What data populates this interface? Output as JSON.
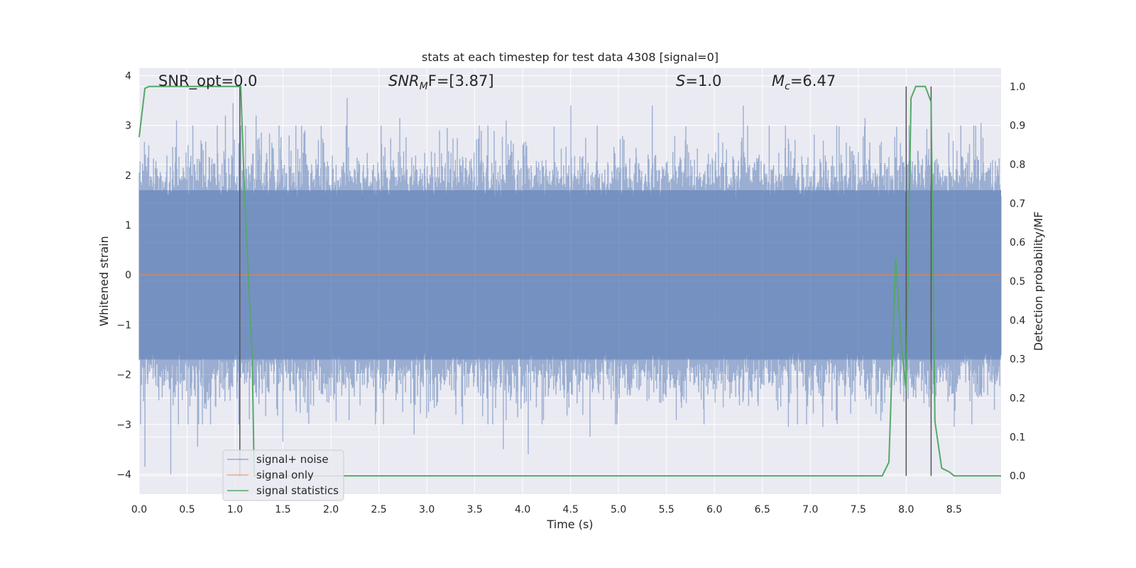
{
  "chart_data": {
    "type": "line",
    "title": "stats at each timestep for test data 4308 [signal=0]",
    "xlabel": "Time (s)",
    "ylabel": "Whitened strain",
    "y2label": "Detection probability/MF",
    "xlim": [
      0,
      8.99
    ],
    "ylim": [
      -4.4,
      4.15
    ],
    "y2lim": [
      -0.047,
      1.047
    ],
    "xticks": [
      0.0,
      0.5,
      1.0,
      1.5,
      2.0,
      2.5,
      3.0,
      3.5,
      4.0,
      4.5,
      5.0,
      5.5,
      6.0,
      6.5,
      7.0,
      7.5,
      8.0,
      8.5
    ],
    "xtick_labels": [
      "0.0",
      "0.5",
      "1.0",
      "1.5",
      "2.0",
      "2.5",
      "3.0",
      "3.5",
      "4.0",
      "4.5",
      "5.0",
      "5.5",
      "6.0",
      "6.5",
      "7.0",
      "7.5",
      "8.0",
      "8.5"
    ],
    "yticks": [
      -4,
      -3,
      -2,
      -1,
      0,
      1,
      2,
      3,
      4
    ],
    "ytick_labels": [
      "−4",
      "−3",
      "−2",
      "−1",
      "0",
      "1",
      "2",
      "3",
      "4"
    ],
    "y2ticks": [
      0.0,
      0.1,
      0.2,
      0.3,
      0.4,
      0.5,
      0.6,
      0.7,
      0.8,
      0.9,
      1.0
    ],
    "y2tick_labels": [
      "0.0",
      "0.1",
      "0.2",
      "0.3",
      "0.4",
      "0.5",
      "0.6",
      "0.7",
      "0.8",
      "0.9",
      "1.0"
    ],
    "grid": true,
    "legend_position": "bottom-left",
    "annotations": {
      "snr_opt": "SNR_opt=0.0",
      "snr_mf_base": "SNR",
      "snr_mf_sub": "M",
      "snr_mf_rest": "F=[3.87]",
      "s_var": "S",
      "s_rest": "=1.0",
      "mc_var": "M",
      "mc_sub": "c",
      "mc_rest": "=6.47"
    },
    "colors": {
      "background": "#eaeaf2",
      "grid": "#ffffff",
      "noise": "#4c72b0",
      "signal": "#dd8452",
      "stats": "#55a868",
      "vline": "#555555"
    },
    "series": [
      {
        "name": "signal+ noise",
        "axis": "left",
        "style": "dense-noise",
        "sample_count": 1800,
        "envelope_typical": [
          -1.7,
          1.7
        ],
        "max_peaks": [
          {
            "x": 0.1,
            "y": 2.6
          },
          {
            "x": 0.39,
            "y": 3.1
          },
          {
            "x": 0.9,
            "y": 3.2
          },
          {
            "x": 0.98,
            "y": 3.45
          },
          {
            "x": 1.22,
            "y": 3.2
          },
          {
            "x": 2.17,
            "y": 3.55
          },
          {
            "x": 2.72,
            "y": 3.15
          },
          {
            "x": 3.83,
            "y": 3.1
          },
          {
            "x": 4.5,
            "y": 3.4
          },
          {
            "x": 5.35,
            "y": 3.4
          },
          {
            "x": 6.3,
            "y": 3.4
          },
          {
            "x": 7.57,
            "y": 3.15
          },
          {
            "x": 8.78,
            "y": 3.05
          }
        ],
        "min_peaks": [
          {
            "x": 0.06,
            "y": -3.85
          },
          {
            "x": 0.33,
            "y": -4.0
          },
          {
            "x": 0.61,
            "y": -3.45
          },
          {
            "x": 1.5,
            "y": -3.35
          },
          {
            "x": 2.87,
            "y": -3.2
          },
          {
            "x": 3.8,
            "y": -3.5
          },
          {
            "x": 4.06,
            "y": -3.6
          },
          {
            "x": 4.7,
            "y": -3.25
          },
          {
            "x": 6.77,
            "y": -3.05
          },
          {
            "x": 7.13,
            "y": -3.05
          },
          {
            "x": 8.5,
            "y": -3.05
          }
        ]
      },
      {
        "name": "signal only",
        "axis": "left",
        "x": [
          0,
          8.99
        ],
        "y": [
          0,
          0
        ]
      },
      {
        "name": "signal statistics",
        "axis": "right",
        "x": [
          0.0,
          0.06,
          0.1,
          0.2,
          0.5,
          1.0,
          1.06,
          1.1,
          1.18,
          1.2,
          1.3,
          7.75,
          7.82,
          7.89,
          7.95,
          8.0,
          8.05,
          8.1,
          8.15,
          8.2,
          8.26,
          8.3,
          8.37,
          8.45,
          8.5,
          8.99
        ],
        "y": [
          0.87,
          0.995,
          1.0,
          1.0,
          1.0,
          1.0,
          1.0,
          0.72,
          0.3,
          0.0,
          0.0,
          0.0,
          0.035,
          0.56,
          0.33,
          0.22,
          0.97,
          1.0,
          1.0,
          1.0,
          0.96,
          0.14,
          0.02,
          0.01,
          0.0,
          0.0
        ]
      }
    ],
    "vertical_lines_x": [
      1.05,
      8.0,
      8.26
    ],
    "vertical_lines_top_y2": 1.0
  }
}
